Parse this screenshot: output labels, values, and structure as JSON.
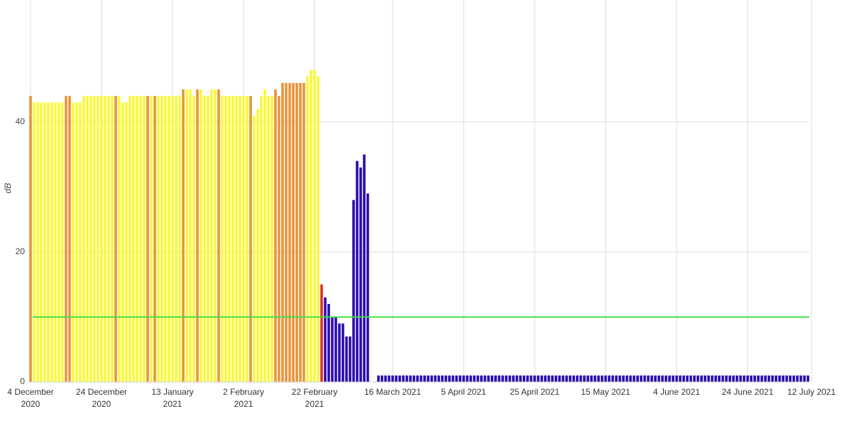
{
  "chart_data": {
    "type": "bar",
    "y_label": "dB",
    "ylim": [
      0,
      58
    ],
    "yticks": [
      0,
      20,
      40
    ],
    "xlim": [
      "2020-12-04",
      "2021-07-12"
    ],
    "xticks": [
      {
        "value": "2020-12-04",
        "label": "4 December\n2020"
      },
      {
        "value": "2020-12-24",
        "label": "24 December\n2020"
      },
      {
        "value": "2021-01-13",
        "label": "13 January\n2021"
      },
      {
        "value": "2021-02-02",
        "label": "2 February\n2021"
      },
      {
        "value": "2021-02-22",
        "label": "22 February\n2021"
      },
      {
        "value": "2021-03-16",
        "label": "16 March 2021"
      },
      {
        "value": "2021-04-05",
        "label": "5 April 2021"
      },
      {
        "value": "2021-04-25",
        "label": "25 April 2021"
      },
      {
        "value": "2021-05-15",
        "label": "15 May 2021"
      },
      {
        "value": "2021-06-04",
        "label": "4 June 2021"
      },
      {
        "value": "2021-06-24",
        "label": "24 June 2021"
      },
      {
        "value": "2021-07-12",
        "label": "12 July 2021"
      }
    ],
    "grid": true,
    "threshold": 10,
    "threshold_color": "#44dd44",
    "series": [
      {
        "color": "#f8f83c",
        "x": [
          "2020-12-05",
          "2020-12-06",
          "2020-12-07",
          "2020-12-08",
          "2020-12-09",
          "2020-12-10",
          "2020-12-11",
          "2020-12-12",
          "2020-12-13",
          "2020-12-16",
          "2020-12-17",
          "2020-12-18",
          "2020-12-19",
          "2020-12-20",
          "2020-12-21",
          "2020-12-22",
          "2020-12-23",
          "2020-12-24",
          "2020-12-25",
          "2020-12-26",
          "2020-12-27",
          "2020-12-29",
          "2020-12-30",
          "2020-12-31",
          "2021-01-01",
          "2021-01-02",
          "2021-01-03",
          "2021-01-04",
          "2021-01-05",
          "2021-01-07",
          "2021-01-09",
          "2021-01-10",
          "2021-01-11",
          "2021-01-12",
          "2021-01-13",
          "2021-01-14",
          "2021-01-15",
          "2021-01-17",
          "2021-01-18",
          "2021-01-19",
          "2021-01-21",
          "2021-01-22",
          "2021-01-23",
          "2021-01-24",
          "2021-01-25",
          "2021-01-27",
          "2021-01-28",
          "2021-01-29",
          "2021-01-30",
          "2021-01-31",
          "2021-02-01",
          "2021-02-02",
          "2021-02-03",
          "2021-02-05",
          "2021-02-06",
          "2021-02-07",
          "2021-02-08",
          "2021-02-09",
          "2021-02-10",
          "2021-02-20",
          "2021-02-21",
          "2021-02-22",
          "2021-02-23"
        ],
        "values": [
          43,
          43,
          43,
          43,
          43,
          43,
          43,
          43,
          43,
          43,
          43,
          43,
          44,
          44,
          44,
          44,
          44,
          44,
          44,
          44,
          44,
          44,
          43,
          43,
          44,
          44,
          44,
          44,
          44,
          44,
          44,
          44,
          44,
          44,
          44,
          44,
          44,
          45,
          45,
          44,
          45,
          44,
          44,
          45,
          45,
          44,
          44,
          44,
          44,
          44,
          44,
          44,
          44,
          41,
          42,
          44,
          45,
          44,
          44,
          47,
          48,
          48,
          47
        ]
      },
      {
        "color": "#e8943a",
        "x": [
          "2020-12-04",
          "2020-12-14",
          "2020-12-15",
          "2020-12-28",
          "2021-01-06",
          "2021-01-08",
          "2021-01-16",
          "2021-01-20",
          "2021-01-26",
          "2021-02-04",
          "2021-02-11",
          "2021-02-12",
          "2021-02-13",
          "2021-02-14",
          "2021-02-15",
          "2021-02-16",
          "2021-02-17",
          "2021-02-18",
          "2021-02-19"
        ],
        "values": [
          44,
          44,
          44,
          44,
          44,
          44,
          45,
          45,
          45,
          44,
          45,
          44,
          46,
          46,
          46,
          46,
          46,
          46,
          46
        ]
      },
      {
        "color": "#e0301e",
        "x": [
          "2021-02-24"
        ],
        "values": [
          15
        ]
      },
      {
        "color": "#2a0cae",
        "x": [
          "2021-02-25",
          "2021-02-26",
          "2021-02-27",
          "2021-02-28",
          "2021-03-01",
          "2021-03-02",
          "2021-03-03",
          "2021-03-04",
          "2021-03-05",
          "2021-03-06",
          "2021-03-07",
          "2021-03-08",
          "2021-03-09",
          "2021-03-12",
          "2021-03-13",
          "2021-03-14",
          "2021-03-15",
          "2021-03-16",
          "2021-03-17",
          "2021-03-18",
          "2021-03-19",
          "2021-03-20",
          "2021-03-21",
          "2021-03-22",
          "2021-03-23",
          "2021-03-24",
          "2021-03-25",
          "2021-03-26",
          "2021-03-27",
          "2021-03-28",
          "2021-03-29",
          "2021-03-30",
          "2021-03-31",
          "2021-04-01",
          "2021-04-02",
          "2021-04-03",
          "2021-04-04",
          "2021-04-05",
          "2021-04-06",
          "2021-04-07",
          "2021-04-08",
          "2021-04-09",
          "2021-04-10",
          "2021-04-11",
          "2021-04-12",
          "2021-04-13",
          "2021-04-14",
          "2021-04-15",
          "2021-04-16",
          "2021-04-17",
          "2021-04-18",
          "2021-04-19",
          "2021-04-20",
          "2021-04-21",
          "2021-04-22",
          "2021-04-23",
          "2021-04-24",
          "2021-04-25",
          "2021-04-26",
          "2021-04-27",
          "2021-04-28",
          "2021-04-29",
          "2021-04-30",
          "2021-05-01",
          "2021-05-02",
          "2021-05-03",
          "2021-05-04",
          "2021-05-05",
          "2021-05-06",
          "2021-05-07",
          "2021-05-08",
          "2021-05-09",
          "2021-05-10",
          "2021-05-11",
          "2021-05-12",
          "2021-05-13",
          "2021-05-14",
          "2021-05-15",
          "2021-05-16",
          "2021-05-17",
          "2021-05-18",
          "2021-05-19",
          "2021-05-20",
          "2021-05-21",
          "2021-05-22",
          "2021-05-23",
          "2021-05-24",
          "2021-05-25",
          "2021-05-26",
          "2021-05-27",
          "2021-05-28",
          "2021-05-29",
          "2021-05-30",
          "2021-05-31",
          "2021-06-01",
          "2021-06-02",
          "2021-06-03",
          "2021-06-04",
          "2021-06-05",
          "2021-06-06",
          "2021-06-07",
          "2021-06-08",
          "2021-06-09",
          "2021-06-10",
          "2021-06-11",
          "2021-06-12",
          "2021-06-13",
          "2021-06-14",
          "2021-06-15",
          "2021-06-16",
          "2021-06-17",
          "2021-06-18",
          "2021-06-19",
          "2021-06-20",
          "2021-06-21",
          "2021-06-22",
          "2021-06-23",
          "2021-06-24",
          "2021-06-25",
          "2021-06-26",
          "2021-06-27",
          "2021-06-28",
          "2021-06-29",
          "2021-06-30",
          "2021-07-01",
          "2021-07-02",
          "2021-07-03",
          "2021-07-04",
          "2021-07-05",
          "2021-07-06",
          "2021-07-07",
          "2021-07-08",
          "2021-07-09",
          "2021-07-10",
          "2021-07-11"
        ],
        "values": [
          13,
          12,
          10,
          10,
          9,
          9,
          7,
          7,
          28,
          34,
          33,
          35,
          29,
          1,
          1,
          1,
          1,
          1,
          1,
          1,
          1,
          1,
          1,
          1,
          1,
          1,
          1,
          1,
          1,
          1,
          1,
          1,
          1,
          1,
          1,
          1,
          1,
          1,
          1,
          1,
          1,
          1,
          1,
          1,
          1,
          1,
          1,
          1,
          1,
          1,
          1,
          1,
          1,
          1,
          1,
          1,
          1,
          1,
          1,
          1,
          1,
          1,
          1,
          1,
          1,
          1,
          1,
          1,
          1,
          1,
          1,
          1,
          1,
          1,
          1,
          1,
          1,
          1,
          1,
          1,
          1,
          1,
          1,
          1,
          1,
          1,
          1,
          1,
          1,
          1,
          1,
          1,
          1,
          1,
          1,
          1,
          1,
          1,
          1,
          1,
          1,
          1,
          1,
          1,
          1,
          1,
          1,
          1,
          1,
          1,
          1,
          1,
          1,
          1,
          1,
          1,
          1,
          1,
          1,
          1,
          1,
          1,
          1,
          1,
          1,
          1,
          1,
          1,
          1,
          1,
          1,
          1,
          1,
          1,
          1
        ]
      }
    ]
  }
}
